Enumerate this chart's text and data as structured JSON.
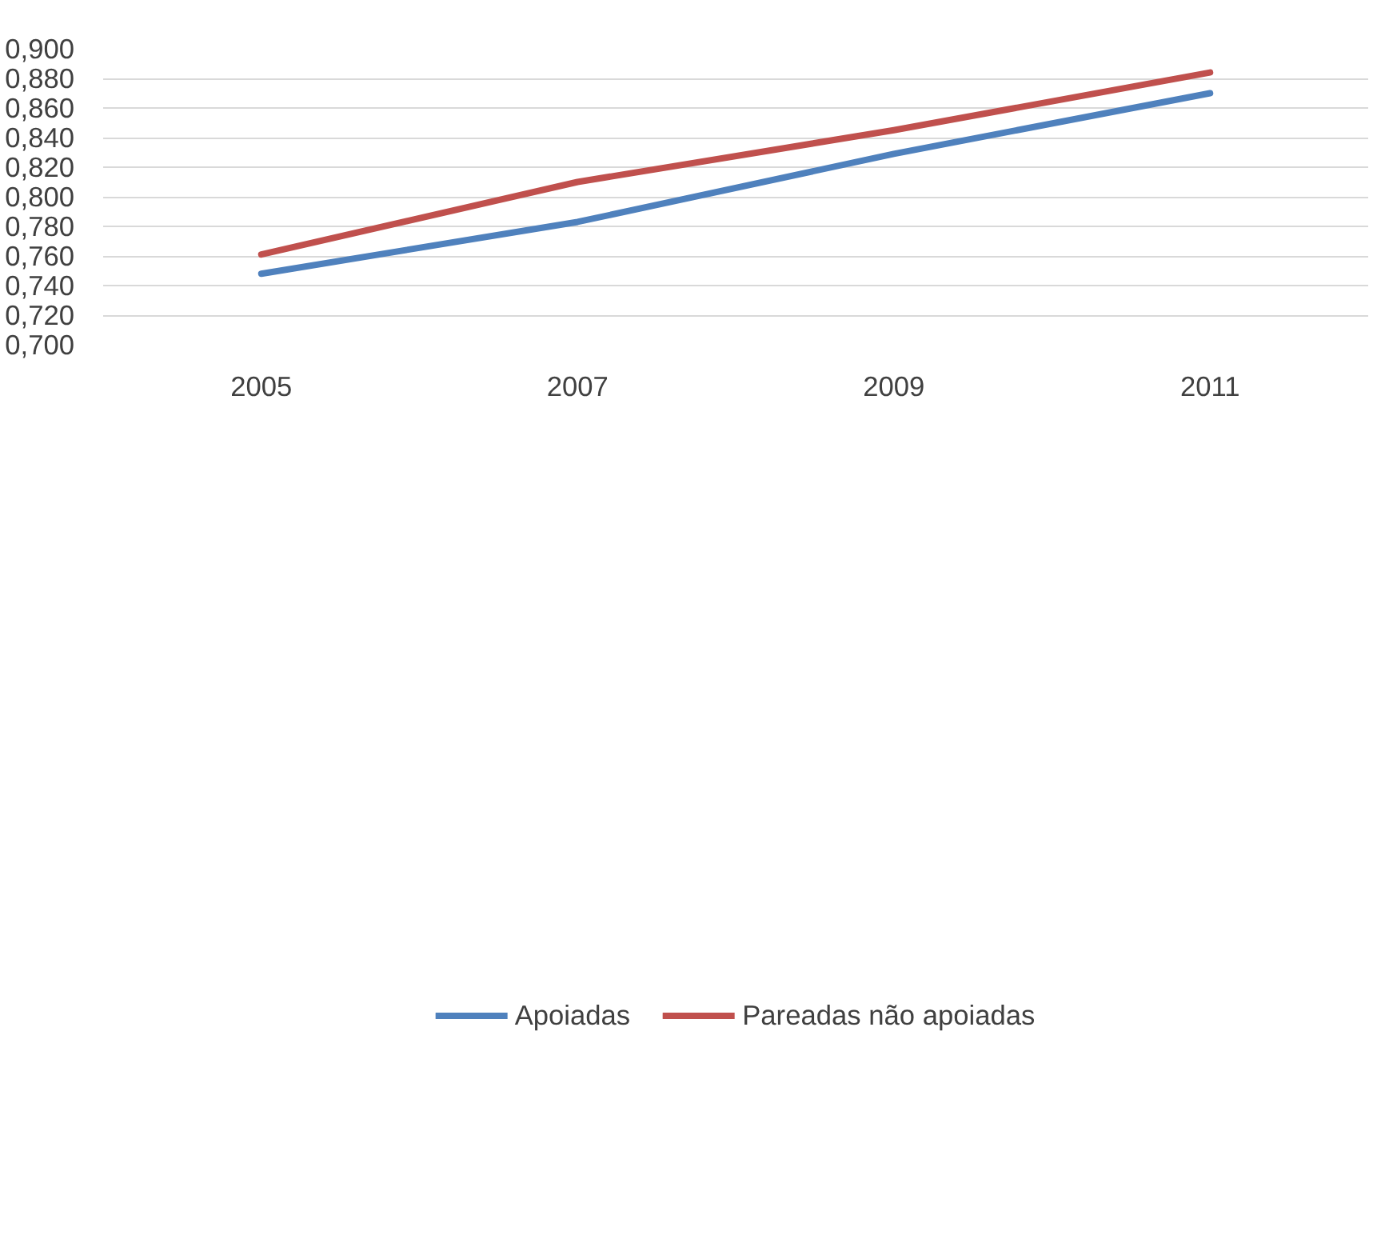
{
  "chart_data": {
    "type": "line",
    "categories": [
      "2005",
      "2007",
      "2009",
      "2011"
    ],
    "series": [
      {
        "name": "Apoiadas",
        "color": "#4f81bd",
        "values": [
          0.748,
          0.783,
          0.829,
          0.87
        ]
      },
      {
        "name": "Pareadas não apoiadas",
        "color": "#c0504d",
        "values": [
          0.761,
          0.81,
          0.845,
          0.884
        ]
      }
    ],
    "ylim": [
      0.7,
      0.9
    ],
    "yticks": [
      {
        "value": 0.7,
        "label": "0,700"
      },
      {
        "value": 0.72,
        "label": "0,720"
      },
      {
        "value": 0.74,
        "label": "0,740"
      },
      {
        "value": 0.76,
        "label": "0,760"
      },
      {
        "value": 0.78,
        "label": "0,780"
      },
      {
        "value": 0.8,
        "label": "0,800"
      },
      {
        "value": 0.82,
        "label": "0,820"
      },
      {
        "value": 0.84,
        "label": "0,840"
      },
      {
        "value": 0.86,
        "label": "0,860"
      },
      {
        "value": 0.88,
        "label": "0,880"
      },
      {
        "value": 0.9,
        "label": "0,900"
      }
    ],
    "grid": "y",
    "legend": "bottom",
    "marker": "none",
    "line_style": "solid"
  }
}
